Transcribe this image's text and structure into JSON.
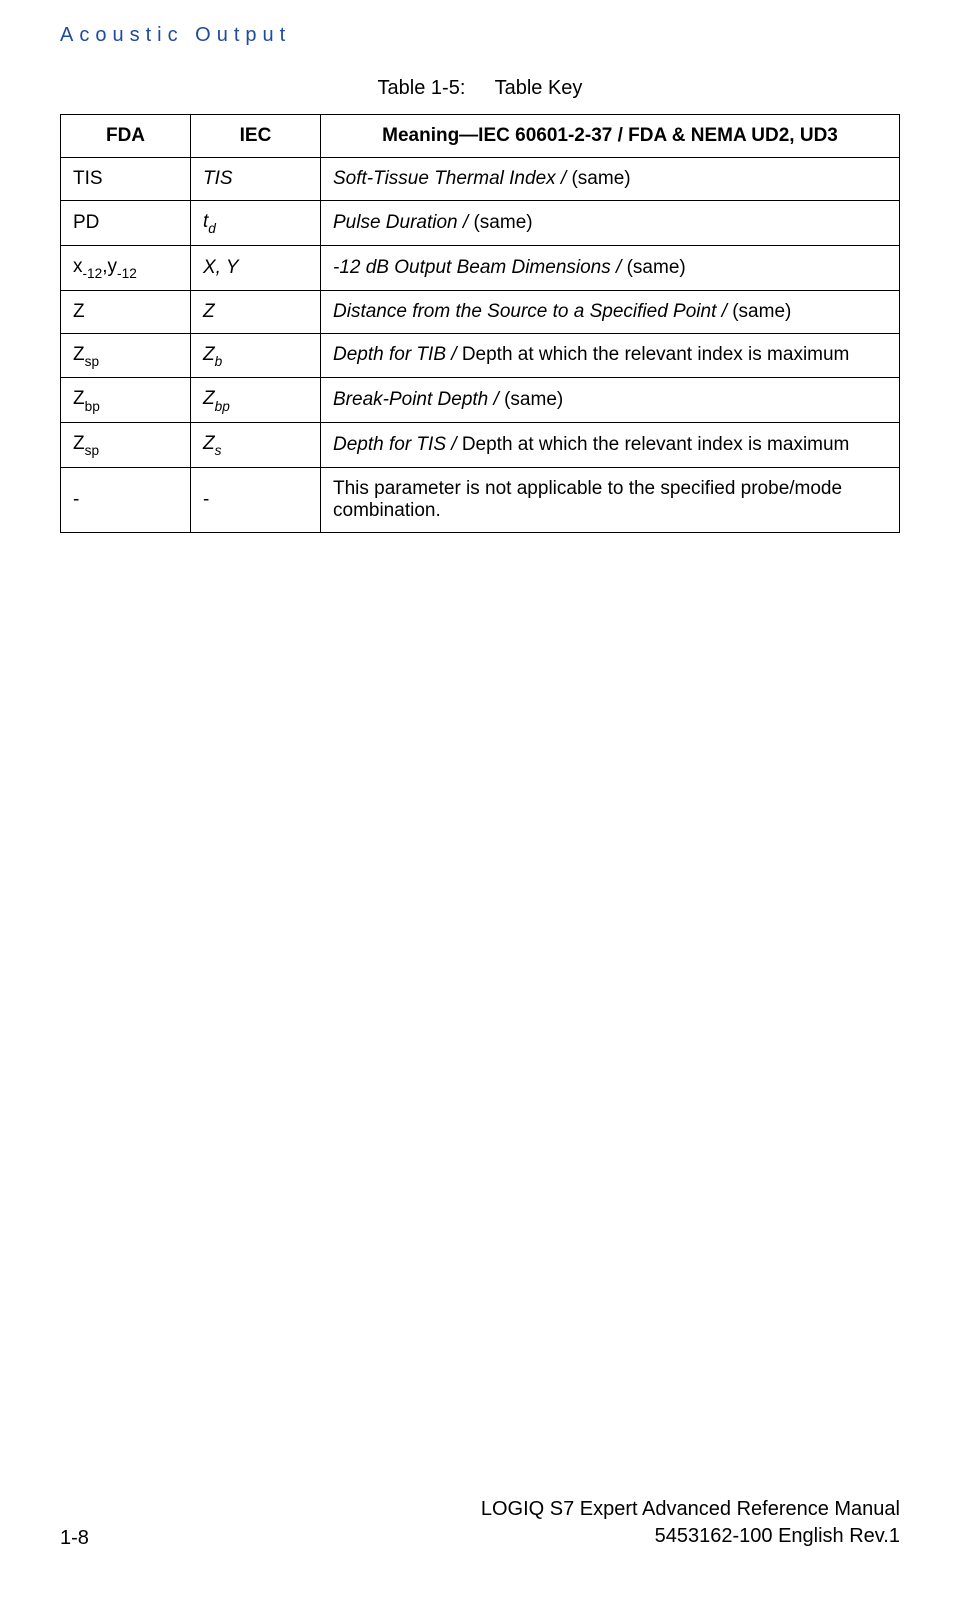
{
  "header": "Acoustic Output",
  "caption": {
    "label": "Table 1-5:",
    "title": "Table Key"
  },
  "columns": {
    "fda": "FDA",
    "iec": "IEC",
    "meaning": "Meaning—IEC 60601-2-37 / FDA & NEMA UD2, UD3"
  },
  "rows": [
    {
      "fda_html": "TIS",
      "iec_html": "<span class=\"italic\">TIS</span>",
      "meaning_html": "<span class=\"italic\">Soft-Tissue Thermal Index / </span>(same)"
    },
    {
      "fda_html": "PD",
      "iec_html": "<span class=\"italic\">t<span class=\"sub\">d</span></span>",
      "meaning_html": "<span class=\"italic\">Pulse Duration / </span>(same)"
    },
    {
      "fda_html": "x<span class=\"sub\">-12</span>,y<span class=\"sub\">-12</span>",
      "iec_html": "<span class=\"italic\">X, Y</span>",
      "meaning_html": "<span class=\"italic\">-12 dB Output Beam Dimensions / </span>(same)"
    },
    {
      "fda_html": "Z",
      "iec_html": "<span class=\"italic\">Z</span>",
      "meaning_html": "<span class=\"italic\">Distance from the Source to a Specified Point / </span>(same)"
    },
    {
      "fda_html": "Z<span class=\"sub\">sp</span>",
      "iec_html": "<span class=\"italic\">Z<span class=\"sub\">b</span></span>",
      "meaning_html": "<span class=\"italic\">Depth for TIB / </span>Depth at which the relevant index is maximum"
    },
    {
      "fda_html": "Z<span class=\"sub\">bp</span>",
      "iec_html": "<span class=\"italic\">Z<span class=\"sub\">bp</span></span>",
      "meaning_html": "<span class=\"italic\">Break-Point Depth / </span>(same)"
    },
    {
      "fda_html": "Z<span class=\"sub\">sp</span>",
      "iec_html": "<span class=\"italic\">Z<span class=\"sub\">s</span></span>",
      "meaning_html": "<span class=\"italic\">Depth for TIS / </span>Depth at which the relevant index is maximum"
    },
    {
      "fda_html": "-",
      "iec_html": "-",
      "meaning_html": "This parameter is not applicable to the specified probe/mode combination."
    }
  ],
  "footer": {
    "page": "1-8",
    "manual_line1": "LOGIQ S7 Expert Advanced Reference Manual",
    "manual_line2": "5453162-100 English Rev.1"
  }
}
